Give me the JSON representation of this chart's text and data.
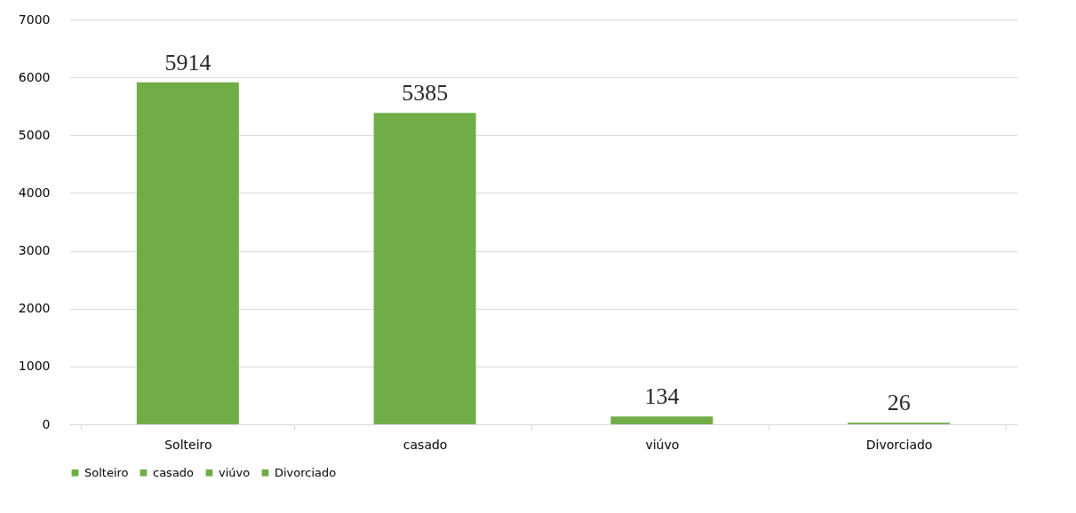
{
  "chart_data": {
    "type": "bar",
    "categories": [
      "Solteiro",
      "casado",
      "viúvo",
      "Divorciado"
    ],
    "series": [
      {
        "name": "Solteiro",
        "color": "#70ad47",
        "values": [
          5914,
          null,
          null,
          null
        ]
      },
      {
        "name": "casado",
        "color": "#70ad47",
        "values": [
          null,
          5385,
          null,
          null
        ]
      },
      {
        "name": "viúvo",
        "color": "#70ad47",
        "values": [
          null,
          null,
          134,
          null
        ]
      },
      {
        "name": "Divorciado",
        "color": "#70ad47",
        "values": [
          null,
          null,
          null,
          26
        ]
      }
    ],
    "ylim": [
      0,
      7000
    ],
    "yticks": [
      0,
      1000,
      2000,
      3000,
      4000,
      5000,
      6000,
      7000
    ],
    "grid": "y",
    "legend": "bottom",
    "data_labels": true
  }
}
